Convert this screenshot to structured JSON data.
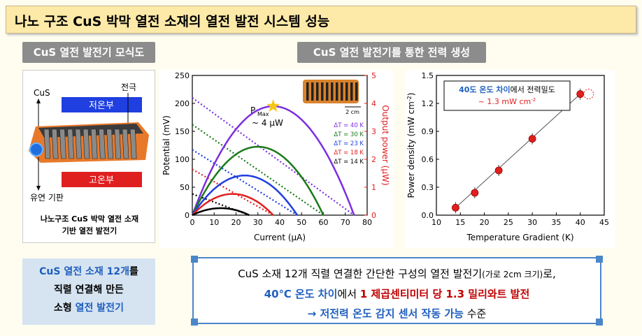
{
  "title": "나노 구조 CuS 박막 열전 소재의 열전 발전 시스템 성능",
  "schematic": {
    "label": "CuS 열전 발전기 모식도",
    "cold_label": "저온부",
    "hot_label": "고온부",
    "cus_label": "CuS",
    "electrode_label": "전극",
    "substrate_label": "유연 기판",
    "caption_line1": "나노구조 CuS 박막 열전 소재",
    "caption_line2": "기반 열전 발전기"
  },
  "generation": {
    "label": "CuS 열전 발전기를 통한 전력 생성"
  },
  "note_box": {
    "line1_a": "CuS 열전 소재 12개",
    "line1_b": "를",
    "line2": "직렬 연결해 만든",
    "line3_a": "소형 ",
    "line3_b": "열전 발전기"
  },
  "summary": {
    "line1_main": "CuS 소재 12개 직렬 연결한 간단한 구성의 열전 발전기",
    "line1_small": "(가로 2cm 크기)",
    "line1_end": "로,",
    "line2_a": "40℃ 온도 차이",
    "line2_b": "에서 ",
    "line2_c": "1 제곱센티미터 당 1.3 밀리와트 발전",
    "line3_a": "→ 저전력 온도 감지 센서 작동 가능",
    "line3_b": " 수준"
  },
  "colors": {
    "dT40": "#7b2fe0",
    "dT30": "#1a7a1a",
    "dT23": "#1f3fe0",
    "dT18": "#e01f1f",
    "dT14": "#000000",
    "power_axis": "#e01f1f"
  },
  "chart_data": [
    {
      "type": "line",
      "xlabel": "Current (μA)",
      "ylabel": "Potential (mV)",
      "y2label": "Output power (μW)",
      "xlim": [
        0,
        80
      ],
      "ylim": [
        0,
        250
      ],
      "y2lim": [
        0,
        5
      ],
      "xticks": [
        "0",
        "10",
        "20",
        "30",
        "40",
        "50",
        "60",
        "70",
        "80"
      ],
      "yticks": [
        "0",
        "50",
        "100",
        "150",
        "200",
        "250"
      ],
      "y2ticks": [
        "0",
        "1",
        "2",
        "3",
        "4",
        "5"
      ],
      "annotation_pmax": "P",
      "annotation_pmax_sub": "Max",
      "annotation_value": "~ 4 μW",
      "inset_scale": "2 cm",
      "series": [
        {
          "name": "ΔT = 40 K",
          "voltage_intercept": 210,
          "current_intercept": 74,
          "power_peak": 3.9
        },
        {
          "name": "ΔT = 30 K",
          "voltage_intercept": 162,
          "current_intercept": 60,
          "power_peak": 2.45
        },
        {
          "name": "ΔT = 23 K",
          "voltage_intercept": 117,
          "current_intercept": 48,
          "power_peak": 1.42
        },
        {
          "name": "ΔT = 18 K",
          "voltage_intercept": 82,
          "current_intercept": 37,
          "power_peak": 0.76
        },
        {
          "name": "ΔT = 14 K",
          "voltage_intercept": 38,
          "current_intercept": 26,
          "power_peak": 0.25
        }
      ]
    },
    {
      "type": "scatter",
      "xlabel": "Temperature Gradient (K)",
      "ylabel": "Power density (mW cm",
      "ylabel_sup": "-2",
      "ylabel_end": ")",
      "xlim": [
        10,
        45
      ],
      "ylim": [
        0,
        1.5
      ],
      "xticks": [
        "10",
        "15",
        "20",
        "25",
        "30",
        "35",
        "40",
        "45"
      ],
      "yticks": [
        "0.0",
        "0.3",
        "0.6",
        "0.9",
        "1.2",
        "1.5"
      ],
      "x": [
        14,
        18,
        23,
        30,
        40
      ],
      "y": [
        0.08,
        0.24,
        0.48,
        0.82,
        1.3
      ],
      "annotation_a": "40도 온도 차이",
      "annotation_b": "에서 전력밀도",
      "annotation_c": "~ 1.3 mW cm",
      "annotation_c_sup": "-2"
    }
  ]
}
